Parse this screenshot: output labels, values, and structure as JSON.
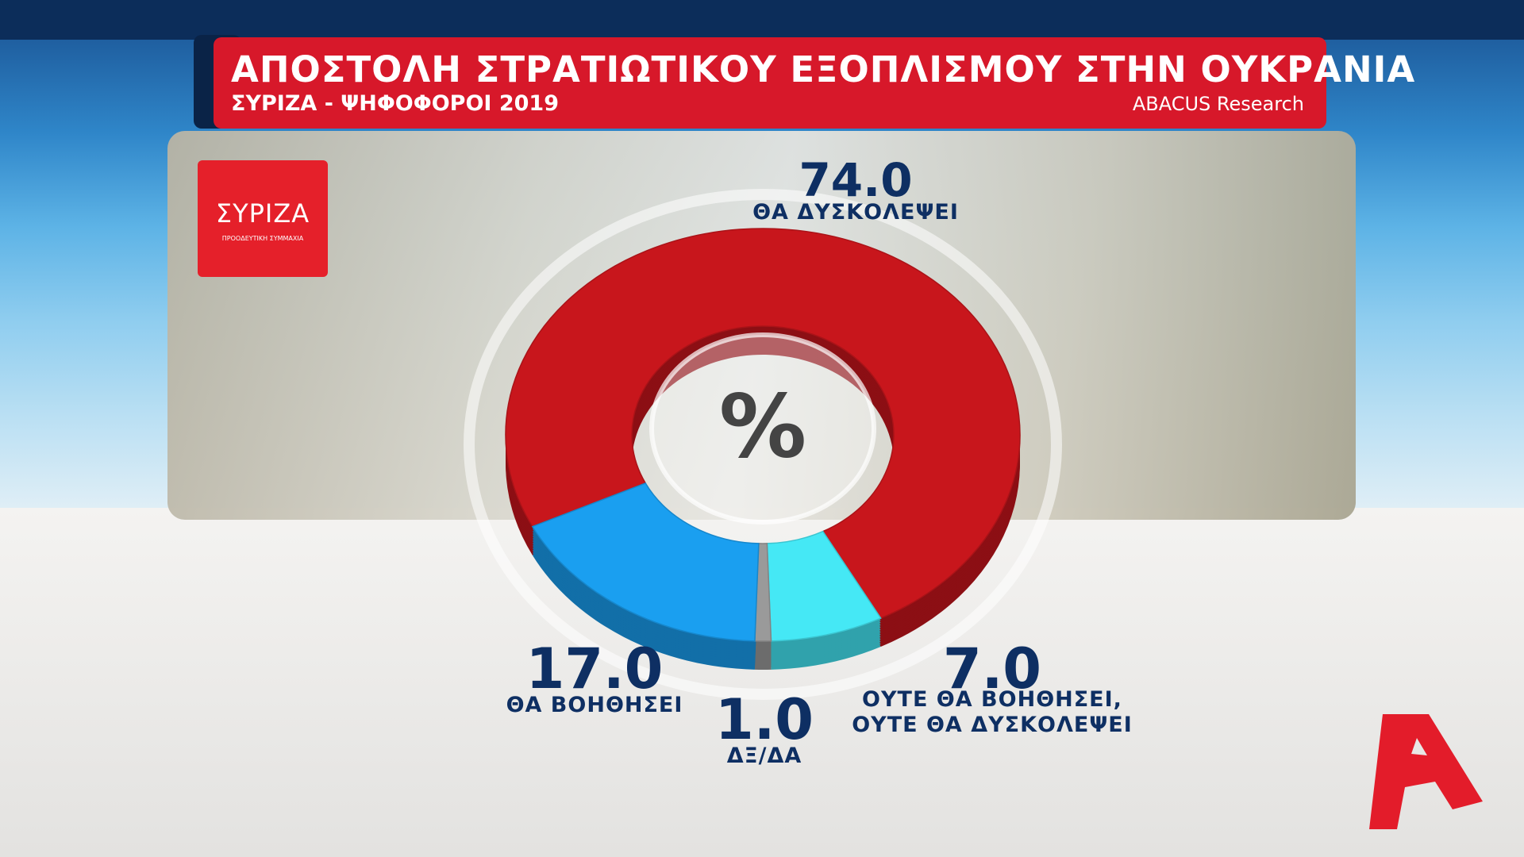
{
  "chart_data": {
    "type": "donut",
    "title": "ΑΠΟΣΤΟΛΗ ΣΤΡΑΤΙΩΤΙΚΟΥ ΕΞΟΠΛΙΣΜΟΥ ΣΤΗΝ ΟΥΚΡΑΝΙΑ",
    "subtitle": "ΣΥΡΙΖΑ - ΨΗΦΟΦΟΡΟΙ 2019",
    "source": "ABACUS Research",
    "center_label": "%",
    "categories": [
      "ΘΑ ΔΥΣΚΟΛΕΨΕΙ",
      "ΟΥΤΕ ΘΑ ΒΟΗΘΗΣΕΙ,\nΟΥΤΕ ΘΑ ΔΥΣΚΟΛΕΨΕΙ",
      "ΔΞ/ΔΑ",
      "ΘΑ ΒΟΗΘΗΣΕΙ"
    ],
    "values": [
      74,
      7,
      1,
      17
    ],
    "value_labels": [
      "74.0",
      "7.0",
      "1.0",
      "17.0"
    ],
    "colors": [
      "#c8161c",
      "#45e8f5",
      "#9a9a9a",
      "#1a9ff0"
    ]
  },
  "logo": {
    "name": "ΣΥΡΙΖΑ",
    "tagline": "ΠΡΟΟΔΕΥΤΙΚΗ ΣΥΜΜΑΧΙΑ"
  }
}
